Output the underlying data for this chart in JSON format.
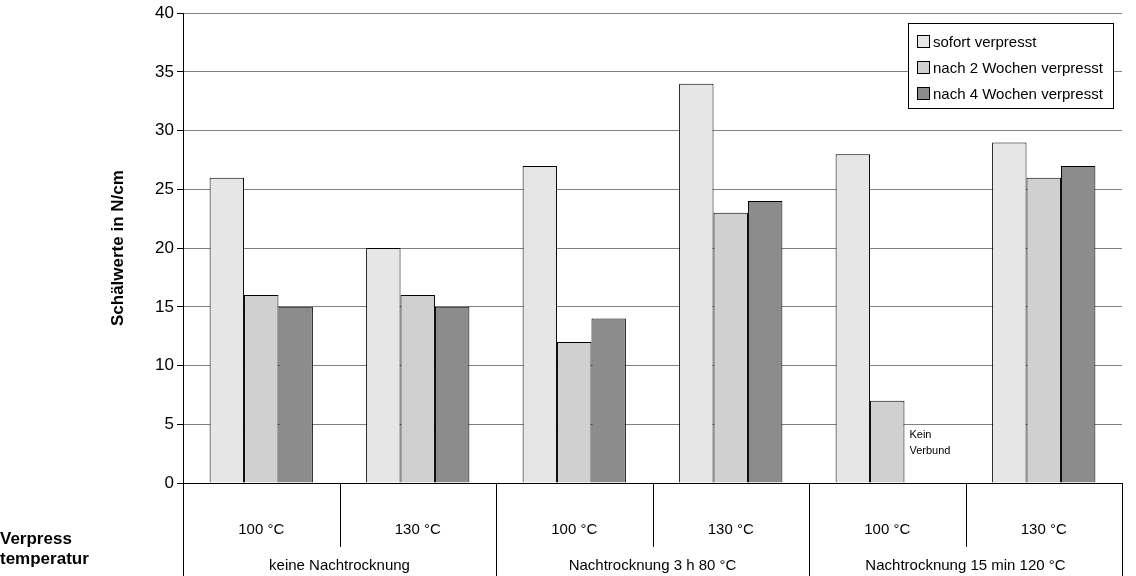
{
  "chart_data": {
    "type": "bar",
    "ylabel": "Schälwerte in N/cm",
    "xlabel": "Verpress temperatur",
    "categories": [
      "100 °C",
      "130 °C",
      "100 °C",
      "130 °C",
      "100 °C",
      "130 °C"
    ],
    "series": [
      {
        "name": "sofort verpresst",
        "color": "#e6e6e6",
        "values": [
          26,
          20,
          27,
          34,
          28,
          29
        ]
      },
      {
        "name": "nach 2 Wochen verpresst",
        "color": "#d0d0d0",
        "values": [
          16,
          16,
          12,
          23,
          7,
          26
        ]
      },
      {
        "name": "nach 4 Wochen verpresst",
        "color": "#8c8c8c",
        "values": [
          15,
          15,
          14,
          24,
          null,
          27
        ],
        "value_labels": [
          null,
          null,
          null,
          null,
          "Kein Verbund",
          null
        ]
      }
    ],
    "annotations": [
      "keine Nachtrocknung",
      "Nachtrocknung 3 h 80 °C",
      "Nachtrocknung 15 min 120 °C"
    ],
    "ylim": [
      0,
      40
    ],
    "yticks": [
      0,
      5,
      10,
      15,
      20,
      25,
      30,
      35,
      40
    ],
    "grid": "y",
    "legend": "top right"
  }
}
